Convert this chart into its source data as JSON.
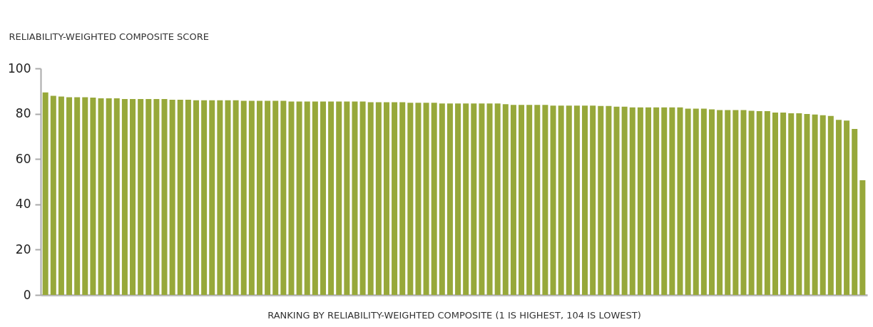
{
  "chart_data": {
    "type": "bar",
    "ylabel": "RELIABILITY-WEIGHTED COMPOSITE SCORE",
    "xlabel": "RANKING BY RELIABILITY-WEIGHTED COMPOSITE (1 IS HIGHEST, 104 IS LOWEST)",
    "categories": [
      null,
      null,
      null,
      null,
      null,
      null,
      null,
      null,
      null,
      null,
      null,
      null,
      null,
      null,
      null,
      null,
      null,
      null,
      null,
      null,
      null,
      null,
      null,
      null,
      null,
      null,
      null,
      null,
      null,
      null,
      null,
      null,
      null,
      null,
      null,
      null,
      null,
      null,
      null,
      null,
      null,
      null,
      null,
      null,
      null,
      null,
      null,
      null,
      null,
      null,
      null,
      null,
      null,
      null,
      null,
      null,
      null,
      null,
      null,
      null,
      null,
      null,
      null,
      null,
      null,
      null,
      null,
      null,
      null,
      null,
      null,
      null,
      null,
      null,
      null,
      null,
      null,
      null,
      null,
      null,
      null,
      null,
      null,
      null,
      null,
      null,
      null,
      null,
      null,
      null,
      null,
      null,
      null,
      null,
      null,
      null,
      null,
      null,
      null,
      null,
      null,
      null,
      null,
      null
    ],
    "values": [
      89.4,
      87.9,
      87.6,
      87.3,
      87.3,
      87.3,
      87.1,
      86.8,
      86.8,
      86.8,
      86.5,
      86.5,
      86.5,
      86.5,
      86.5,
      86.5,
      86.2,
      86.2,
      86.2,
      85.9,
      85.9,
      85.9,
      85.9,
      85.9,
      85.9,
      85.7,
      85.7,
      85.7,
      85.7,
      85.7,
      85.7,
      85.4,
      85.4,
      85.4,
      85.4,
      85.4,
      85.4,
      85.4,
      85.4,
      85.4,
      85.4,
      85.1,
      85.1,
      85.1,
      85.1,
      85.1,
      84.8,
      84.8,
      84.8,
      84.8,
      84.5,
      84.5,
      84.5,
      84.5,
      84.5,
      84.5,
      84.5,
      84.5,
      84.2,
      83.9,
      83.9,
      83.9,
      83.9,
      83.9,
      83.6,
      83.6,
      83.6,
      83.6,
      83.6,
      83.6,
      83.4,
      83.4,
      83.1,
      83.1,
      82.8,
      82.8,
      82.8,
      82.8,
      82.8,
      82.8,
      82.8,
      82.2,
      82.2,
      82.2,
      81.9,
      81.6,
      81.6,
      81.6,
      81.6,
      81.3,
      81.1,
      81.1,
      80.5,
      80.5,
      80.2,
      80.2,
      79.9,
      79.6,
      79.3,
      79.0,
      77.3,
      77.0,
      73.3,
      50.6
    ],
    "color": "#97a83a",
    "ylim": [
      0,
      100
    ],
    "yticks": [
      0,
      20,
      40,
      60,
      80,
      100
    ],
    "grid": false
  }
}
